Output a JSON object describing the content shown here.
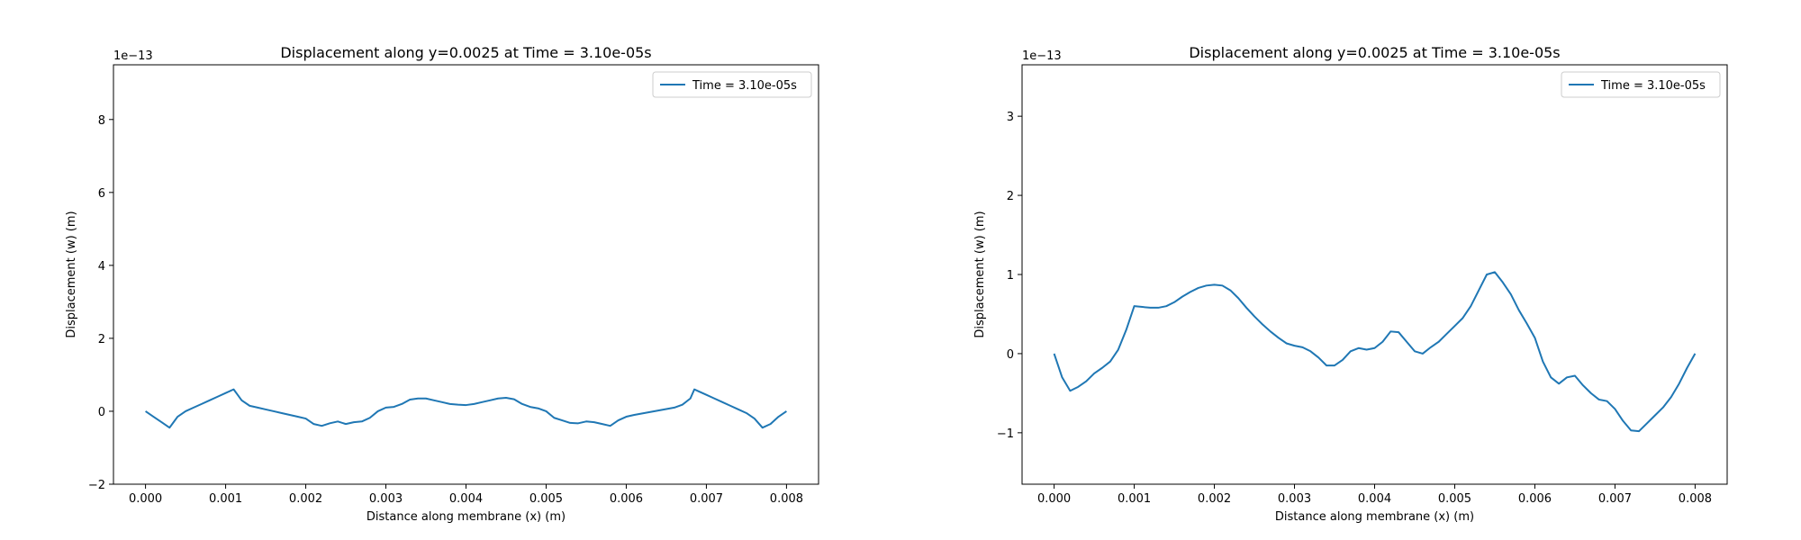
{
  "chart_data": [
    {
      "type": "line",
      "title": "Displacement along y=0.0025 at Time = 3.10e-05s",
      "xlabel": "Distance along membrane (x) (m)",
      "ylabel": "Displacement (w) (m)",
      "offset_text": "1e−13",
      "xlim": [
        -0.0004,
        0.0004
      ],
      "ylim": [
        -2.0,
        9.5
      ],
      "xticks": [
        0.0,
        0.001,
        0.002,
        0.003,
        0.004,
        0.005,
        0.006,
        0.007,
        0.008
      ],
      "xtick_labels": [
        "0.000",
        "0.001",
        "0.002",
        "0.003",
        "0.004",
        "0.005",
        "0.006",
        "0.007",
        "0.008"
      ],
      "yticks": [
        -2,
        0,
        2,
        4,
        6,
        8
      ],
      "ytick_labels": [
        "−2",
        "0",
        "2",
        "4",
        "6",
        "8"
      ],
      "grid": false,
      "legend_position": "top-right",
      "series": [
        {
          "name": "Time = 3.10e-05s",
          "color": "#1f77b4",
          "x": [
            0.0,
            0.0001,
            0.0002,
            0.0003,
            0.00035,
            0.0004,
            0.0005,
            0.0006,
            0.0007,
            0.0008,
            0.0009,
            0.001,
            0.0011,
            0.00115,
            0.0012,
            0.0013,
            0.0014,
            0.0015,
            0.0016,
            0.0017,
            0.0018,
            0.0019,
            0.002,
            0.0021,
            0.0022,
            0.0023,
            0.0024,
            0.0025,
            0.0026,
            0.0027,
            0.0028,
            0.0029,
            0.003,
            0.0031,
            0.0032,
            0.0033,
            0.0034,
            0.0035,
            0.0036,
            0.0037,
            0.0038,
            0.0039,
            0.004,
            0.0041,
            0.0042,
            0.0043,
            0.0044,
            0.0045,
            0.0046,
            0.0047,
            0.0048,
            0.0049,
            0.005,
            0.0051,
            0.0052,
            0.0053,
            0.0054,
            0.0055,
            0.0056,
            0.0057,
            0.0058,
            0.0059,
            0.006,
            0.0061,
            0.0062,
            0.0063,
            0.0064,
            0.0065,
            0.0066,
            0.0067,
            0.0068,
            0.00685,
            0.0069,
            0.007,
            0.0071,
            0.0072,
            0.0073,
            0.0074,
            0.0075,
            0.0076,
            0.0077,
            0.0078,
            0.0079,
            0.008
          ],
          "y": [
            0.0,
            -0.15,
            -0.3,
            -0.45,
            -0.3,
            -0.15,
            0.0,
            0.1,
            0.2,
            0.3,
            0.4,
            0.5,
            0.6,
            0.45,
            0.3,
            0.15,
            0.1,
            0.05,
            0.0,
            -0.05,
            -0.1,
            -0.15,
            -0.2,
            -0.35,
            -0.4,
            -0.33,
            -0.28,
            -0.35,
            -0.3,
            -0.28,
            -0.18,
            0.0,
            0.1,
            0.12,
            0.2,
            0.32,
            0.35,
            0.35,
            0.3,
            0.25,
            0.2,
            0.18,
            0.17,
            0.2,
            0.25,
            0.3,
            0.35,
            0.37,
            0.33,
            0.2,
            0.12,
            0.08,
            0.0,
            -0.18,
            -0.25,
            -0.32,
            -0.33,
            -0.28,
            -0.3,
            -0.35,
            -0.4,
            -0.25,
            -0.15,
            -0.1,
            -0.06,
            -0.02,
            0.02,
            0.06,
            0.1,
            0.18,
            0.35,
            0.6,
            0.55,
            0.45,
            0.35,
            0.25,
            0.15,
            0.05,
            -0.05,
            -0.2,
            -0.45,
            -0.35,
            -0.15,
            0.0
          ]
        }
      ]
    },
    {
      "type": "line",
      "title": "Displacement along y=0.0025 at Time = 3.10e-05s",
      "xlabel": "Distance along membrane (x) (m)",
      "ylabel": "Displacement (w) (m)",
      "offset_text": "1e−13",
      "xlim": [
        -0.0004,
        0.0084
      ],
      "ylim": [
        -1.65,
        3.65
      ],
      "xticks": [
        0.0,
        0.001,
        0.002,
        0.003,
        0.004,
        0.005,
        0.006,
        0.007,
        0.008
      ],
      "xtick_labels": [
        "0.000",
        "0.001",
        "0.002",
        "0.003",
        "0.004",
        "0.005",
        "0.006",
        "0.007",
        "0.008"
      ],
      "yticks": [
        -1,
        0,
        1,
        2,
        3
      ],
      "ytick_labels": [
        "−1",
        "0",
        "1",
        "2",
        "3"
      ],
      "grid": false,
      "legend_position": "top-right",
      "series": [
        {
          "name": "Time = 3.10e-05s",
          "color": "#1f77b4",
          "x": [
            0.0,
            0.0001,
            0.0002,
            0.0003,
            0.0004,
            0.0005,
            0.0006,
            0.0007,
            0.0008,
            0.0009,
            0.001,
            0.0011,
            0.0012,
            0.0013,
            0.0014,
            0.0015,
            0.0016,
            0.0017,
            0.0018,
            0.0019,
            0.002,
            0.0021,
            0.0022,
            0.0023,
            0.0024,
            0.0025,
            0.0026,
            0.0027,
            0.0028,
            0.0029,
            0.003,
            0.0031,
            0.0032,
            0.0033,
            0.0034,
            0.0035,
            0.0036,
            0.0037,
            0.0038,
            0.0039,
            0.004,
            0.0041,
            0.0042,
            0.0043,
            0.0044,
            0.0045,
            0.0046,
            0.0047,
            0.0048,
            0.0049,
            0.005,
            0.0051,
            0.0052,
            0.0053,
            0.0054,
            0.0055,
            0.0056,
            0.0057,
            0.0058,
            0.0059,
            0.006,
            0.0061,
            0.0062,
            0.0063,
            0.0064,
            0.0065,
            0.0066,
            0.0067,
            0.0068,
            0.0069,
            0.007,
            0.0071,
            0.0072,
            0.0073,
            0.0074,
            0.0075,
            0.0076,
            0.0077,
            0.0078,
            0.0079,
            0.008
          ],
          "y": [
            0.0,
            -0.3,
            -0.47,
            -0.42,
            -0.35,
            -0.25,
            -0.18,
            -0.1,
            0.05,
            0.3,
            0.6,
            0.59,
            0.58,
            0.58,
            0.6,
            0.65,
            0.72,
            0.78,
            0.83,
            0.86,
            0.87,
            0.86,
            0.8,
            0.7,
            0.58,
            0.47,
            0.37,
            0.28,
            0.2,
            0.13,
            0.1,
            0.08,
            0.03,
            -0.05,
            -0.15,
            -0.15,
            -0.08,
            0.03,
            0.07,
            0.05,
            0.07,
            0.15,
            0.28,
            0.27,
            0.15,
            0.03,
            0.0,
            0.08,
            0.15,
            0.25,
            0.35,
            0.45,
            0.6,
            0.8,
            1.0,
            1.03,
            0.9,
            0.75,
            0.55,
            0.38,
            0.2,
            -0.1,
            -0.3,
            -0.38,
            -0.3,
            -0.28,
            -0.4,
            -0.5,
            -0.58,
            -0.6,
            -0.7,
            -0.85,
            -0.97,
            -0.98,
            -0.88,
            -0.78,
            -0.68,
            -0.55,
            -0.38,
            -0.18,
            0.0
          ]
        }
      ]
    }
  ]
}
